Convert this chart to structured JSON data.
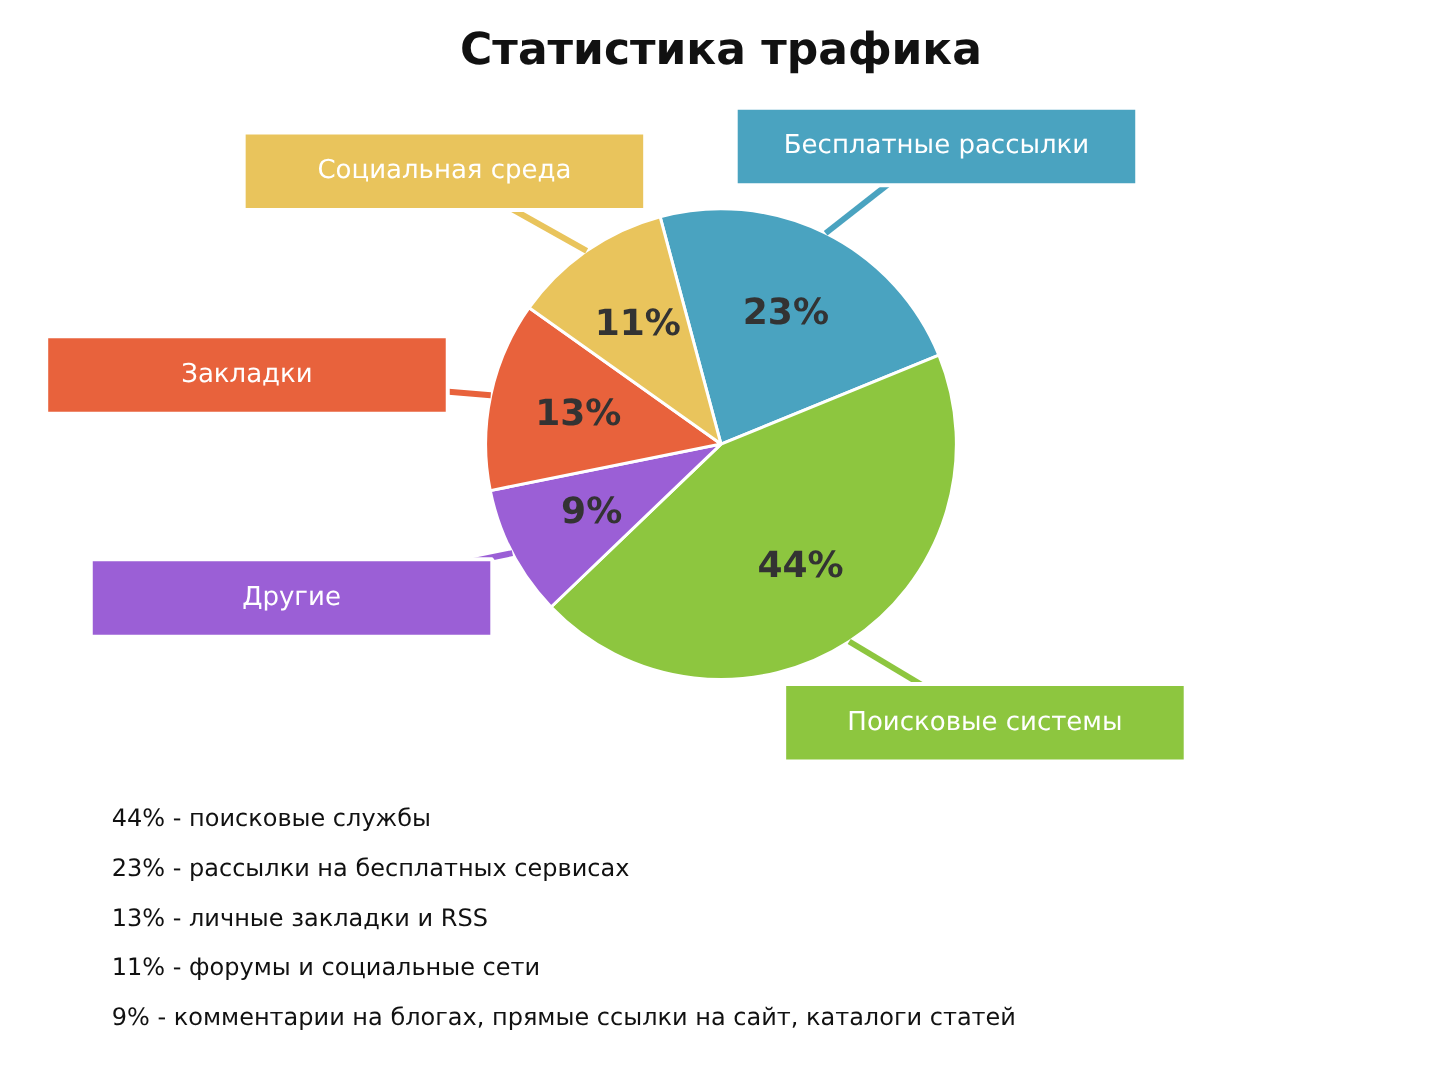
{
  "chart_data": {
    "type": "pie",
    "title": "Статистика трафика",
    "categories": [
      "Бесплатные рассылки",
      "Поисковые системы",
      "Другие",
      "Закладки",
      "Социальная среда"
    ],
    "values": [
      23,
      44,
      9,
      13,
      11
    ],
    "colors": [
      "#4aa3c0",
      "#8dc63f",
      "#9b5fd6",
      "#e8623c",
      "#e9c45c"
    ],
    "value_labels": [
      "23%",
      "44%",
      "9%",
      "13%",
      "11%"
    ],
    "annotations": [
      "44% - поисковые службы",
      "23% - рассылки на бесплатных сервисах",
      "13% - личные закладки и RSS",
      "11% - форумы и социальные сети",
      "9% - комментарии на блогах, прямые ссылки на сайт, каталоги статей"
    ]
  }
}
